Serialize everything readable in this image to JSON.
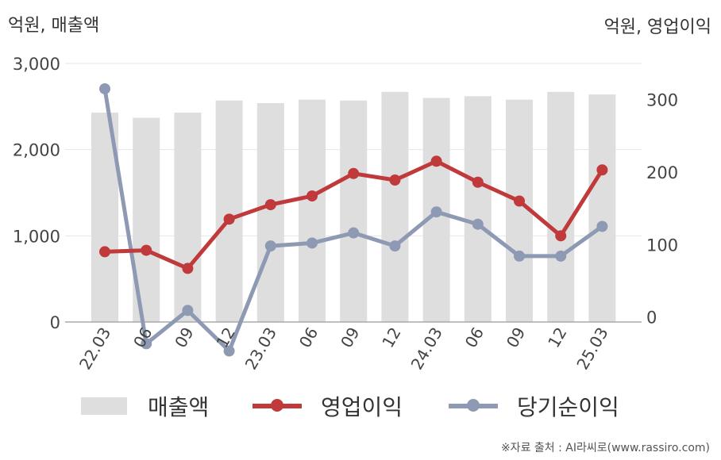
{
  "unit_left": "억원, 매출액",
  "unit_right": "억원, 영업이익",
  "source": "※자료 출처 : AI라씨로(www.rassiro.com)",
  "chart_data": {
    "type": "bar+line",
    "categories": [
      "22.03",
      "06",
      "09",
      "12",
      "23.03",
      "06",
      "09",
      "12",
      "24.03",
      "06",
      "09",
      "12",
      "25.03"
    ],
    "left_axis": {
      "ylim": [
        0,
        3000
      ],
      "ticks": [
        "0",
        "1,000",
        "2,000",
        "3,000"
      ],
      "tick_values": [
        0,
        1000,
        2000,
        3000
      ]
    },
    "right_axis": {
      "ylim": [
        -53,
        350
      ],
      "ticks": [
        "0",
        "100",
        "200",
        "300"
      ],
      "tick_values": [
        0,
        100,
        200,
        300
      ]
    },
    "series": [
      {
        "name": "매출액",
        "kind": "bar",
        "axis": "left",
        "color": "#dedede",
        "values": [
          2430,
          2370,
          2430,
          2570,
          2540,
          2580,
          2570,
          2670,
          2600,
          2620,
          2580,
          2670,
          2640
        ]
      },
      {
        "name": "영업이익",
        "kind": "line",
        "axis": "right",
        "color": "#c0393b",
        "values": [
          90,
          92,
          67,
          135,
          155,
          167,
          198,
          189,
          215,
          186,
          160,
          112,
          203
        ]
      },
      {
        "name": "당기순이익",
        "kind": "line",
        "axis": "right",
        "color": "#8e9ab4",
        "values": [
          315,
          -37,
          9,
          -47,
          98,
          102,
          116,
          98,
          145,
          128,
          84,
          84,
          125
        ]
      }
    ],
    "grid": true,
    "legend": "bottom"
  }
}
